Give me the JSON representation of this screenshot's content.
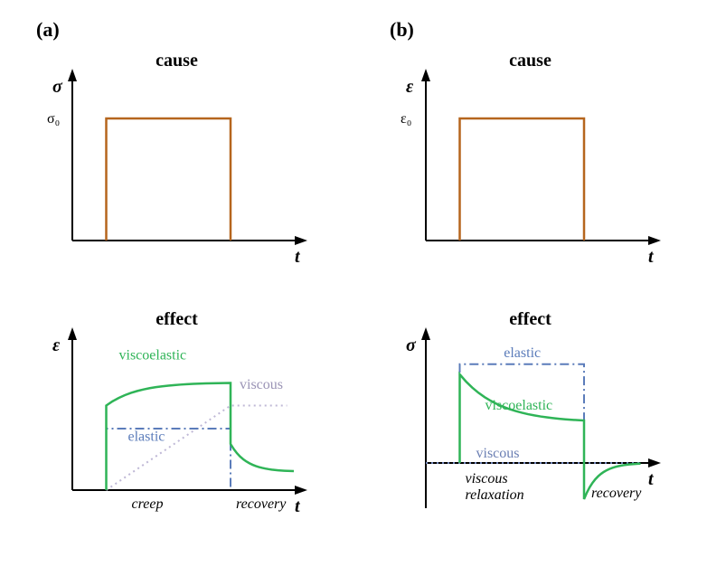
{
  "panels": {
    "a": {
      "label": "(a)"
    },
    "b": {
      "label": "(b)"
    }
  },
  "colors": {
    "axis": "#000000",
    "stepLine": "#b5651d",
    "viscoelastic": "#2fb457",
    "elastic_dashdot": "#5b7cba",
    "viscous_dotted": "#bfb8d6",
    "viscous_dotted_b": "#6b7fb3",
    "background": "#ffffff"
  },
  "styles": {
    "axis_width": 2,
    "step_width": 2.5,
    "curve_width": 2.5,
    "title_fontsize": 20,
    "annot_fontsize": 16,
    "panel_label_fontsize": 22
  },
  "a_top": {
    "title": "cause",
    "y_label": "σ",
    "x_label": "t",
    "y_tick": "σ₀",
    "type": "step",
    "step": {
      "t_on": 0.15,
      "t_off": 0.7,
      "level": 0.75
    }
  },
  "a_bottom": {
    "title": "effect",
    "y_label": "ε",
    "x_label": "t",
    "type": "creep-recovery",
    "curves": {
      "viscoelastic": {
        "label": "viscoelastic",
        "t_on": 0.15,
        "t_off": 0.7,
        "creep_start": 0.55,
        "creep_plateau": 0.7,
        "recovery_drop": 0.3,
        "recovery_asymptote": 0.12
      },
      "elastic": {
        "label": "elastic",
        "level": 0.4,
        "t_on": 0.15,
        "t_off": 0.7
      },
      "viscous": {
        "label": "viscous",
        "t_on": 0.15,
        "slope_end_t": 0.7,
        "slope_end_y": 0.55,
        "plateau_end_t": 0.95
      }
    },
    "regions": {
      "creep": "creep",
      "recovery": "recovery"
    }
  },
  "b_top": {
    "title": "cause",
    "y_label": "ε",
    "x_label": "t",
    "y_tick": "ε₀",
    "type": "step",
    "step": {
      "t_on": 0.15,
      "t_off": 0.7,
      "level": 0.75
    }
  },
  "b_bottom": {
    "title": "effect",
    "y_label": "σ",
    "x_label": "t",
    "type": "stress-relaxation",
    "curves": {
      "elastic": {
        "label": "elastic",
        "level": 0.78,
        "t_on": 0.15,
        "t_off": 0.7
      },
      "viscoelastic": {
        "label": "viscoelastic",
        "t_on": 0.15,
        "t_off": 0.7,
        "peak": 0.7,
        "relax_asymptote": 0.32,
        "neg_dip": -0.2,
        "recovery_end_t": 0.95
      },
      "viscous": {
        "label": "viscous",
        "level": 0.0
      }
    },
    "regions": {
      "relaxation": "viscous\nrelaxation",
      "recovery": "recovery"
    }
  }
}
